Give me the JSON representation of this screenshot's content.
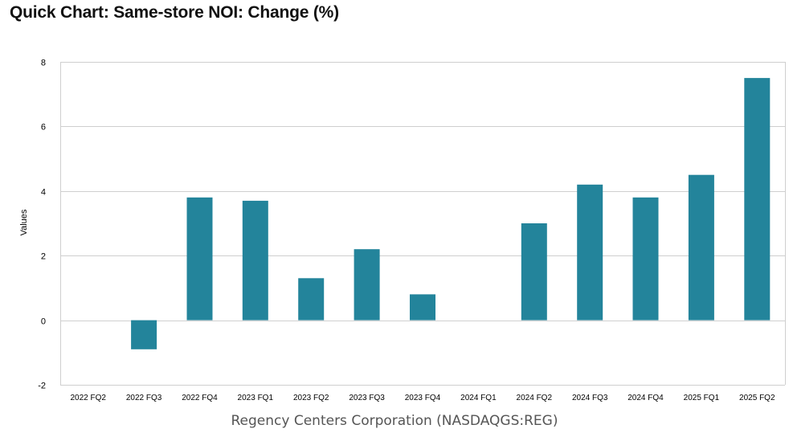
{
  "chart_data": {
    "type": "bar",
    "title": "Quick Chart: Same-store NOI: Change (%)",
    "subtitle": "Regency Centers Corporation (NASDAQGS:REG)",
    "xlabel": "",
    "ylabel": "Values",
    "ylim": [
      -2,
      8
    ],
    "yticks": [
      -2,
      0,
      2,
      4,
      6,
      8
    ],
    "grid": true,
    "legend": "none",
    "bar_color": "#23849B",
    "categories": [
      "2022 FQ2",
      "2022 FQ3",
      "2022 FQ4",
      "2023 FQ1",
      "2023 FQ2",
      "2023 FQ3",
      "2023 FQ4",
      "2024 FQ1",
      "2024 FQ2",
      "2024 FQ3",
      "2024 FQ4",
      "2025 FQ1",
      "2025 FQ2"
    ],
    "values": [
      null,
      -0.9,
      3.8,
      3.7,
      1.3,
      2.2,
      0.8,
      null,
      3.0,
      4.2,
      3.8,
      4.5,
      7.5
    ]
  }
}
